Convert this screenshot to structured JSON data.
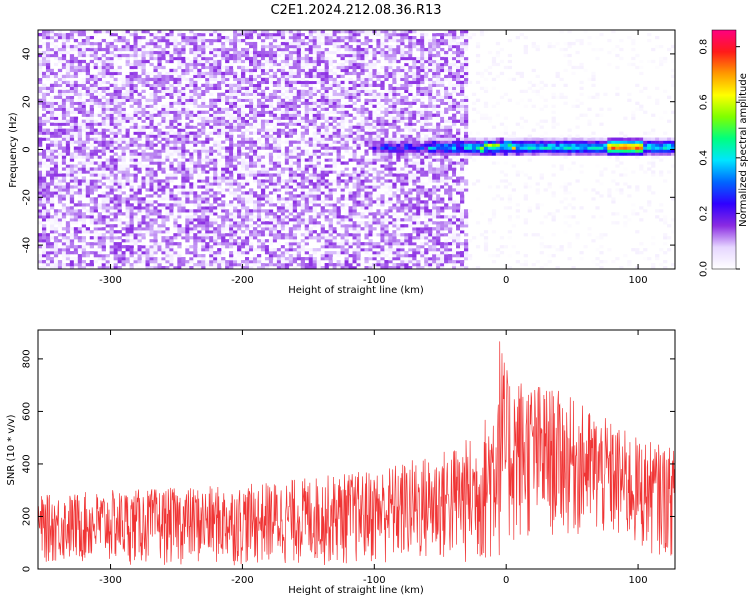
{
  "figure": {
    "title": "C2E1.2024.212.08.36.R13"
  },
  "chart_data": [
    {
      "type": "heatmap",
      "xlabel": "Height of straight line (km)",
      "ylabel": "Frequency (Hz)",
      "xlim": [
        -355,
        128
      ],
      "ylim": [
        -50,
        50
      ],
      "xticks": [
        -300,
        -200,
        -100,
        0,
        100
      ],
      "xtick_labels": [
        "-300",
        "-200",
        "-100",
        "0",
        "100"
      ],
      "yticks": [
        -40,
        -20,
        0,
        20,
        40
      ],
      "ytick_labels": [
        "-40",
        "-20",
        "0",
        "20",
        "40"
      ],
      "colorbar": {
        "label": "Normalized spectral amplitude",
        "range": [
          0,
          0.86
        ],
        "ticks": [
          0,
          0.2,
          0.4,
          0.6,
          0.8
        ],
        "tick_labels": [
          "0.0",
          "0.2",
          "0.4",
          "0.6",
          "0.8"
        ],
        "colormap": [
          "#ffffff",
          "#e6d6ff",
          "#8a2be2",
          "#2f00ff",
          "#0066ff",
          "#00e5ff",
          "#00ff7f",
          "#7fff00",
          "#ffff00",
          "#ff9900",
          "#ff1a1a",
          "#ff0080"
        ]
      },
      "features": {
        "noise_region_x": [
          -355,
          -30
        ],
        "noise_amplitude_typical": 0.12,
        "signal_band_frequency_hz": 1,
        "signal_band_x": [
          -100,
          128
        ],
        "signal_peak_x": 90,
        "signal_peak_amplitude": 0.85
      },
      "grid": false
    },
    {
      "type": "line",
      "xlabel": "Height of straight line (km)",
      "ylabel": "SNR (10 * v/v)",
      "xlim": [
        -355,
        128
      ],
      "ylim": [
        0,
        910
      ],
      "xticks": [
        -300,
        -200,
        -100,
        0,
        100
      ],
      "xtick_labels": [
        "-300",
        "-200",
        "-100",
        "0",
        "100"
      ],
      "yticks": [
        0,
        200,
        400,
        600,
        800
      ],
      "ytick_labels": [
        "0",
        "200",
        "400",
        "600",
        "800"
      ],
      "series": [
        {
          "color": "#f03535",
          "envelope_x": [
            -355,
            -300,
            -200,
            -100,
            -50,
            -20,
            -10,
            -5,
            0,
            20,
            40,
            60,
            80,
            100,
            128
          ],
          "envelope_max": [
            280,
            300,
            320,
            380,
            450,
            520,
            680,
            910,
            760,
            720,
            680,
            620,
            560,
            500,
            460
          ],
          "envelope_min": [
            20,
            15,
            10,
            10,
            10,
            5,
            0,
            20,
            60,
            100,
            120,
            110,
            90,
            60,
            40
          ]
        }
      ],
      "grid": false
    }
  ]
}
